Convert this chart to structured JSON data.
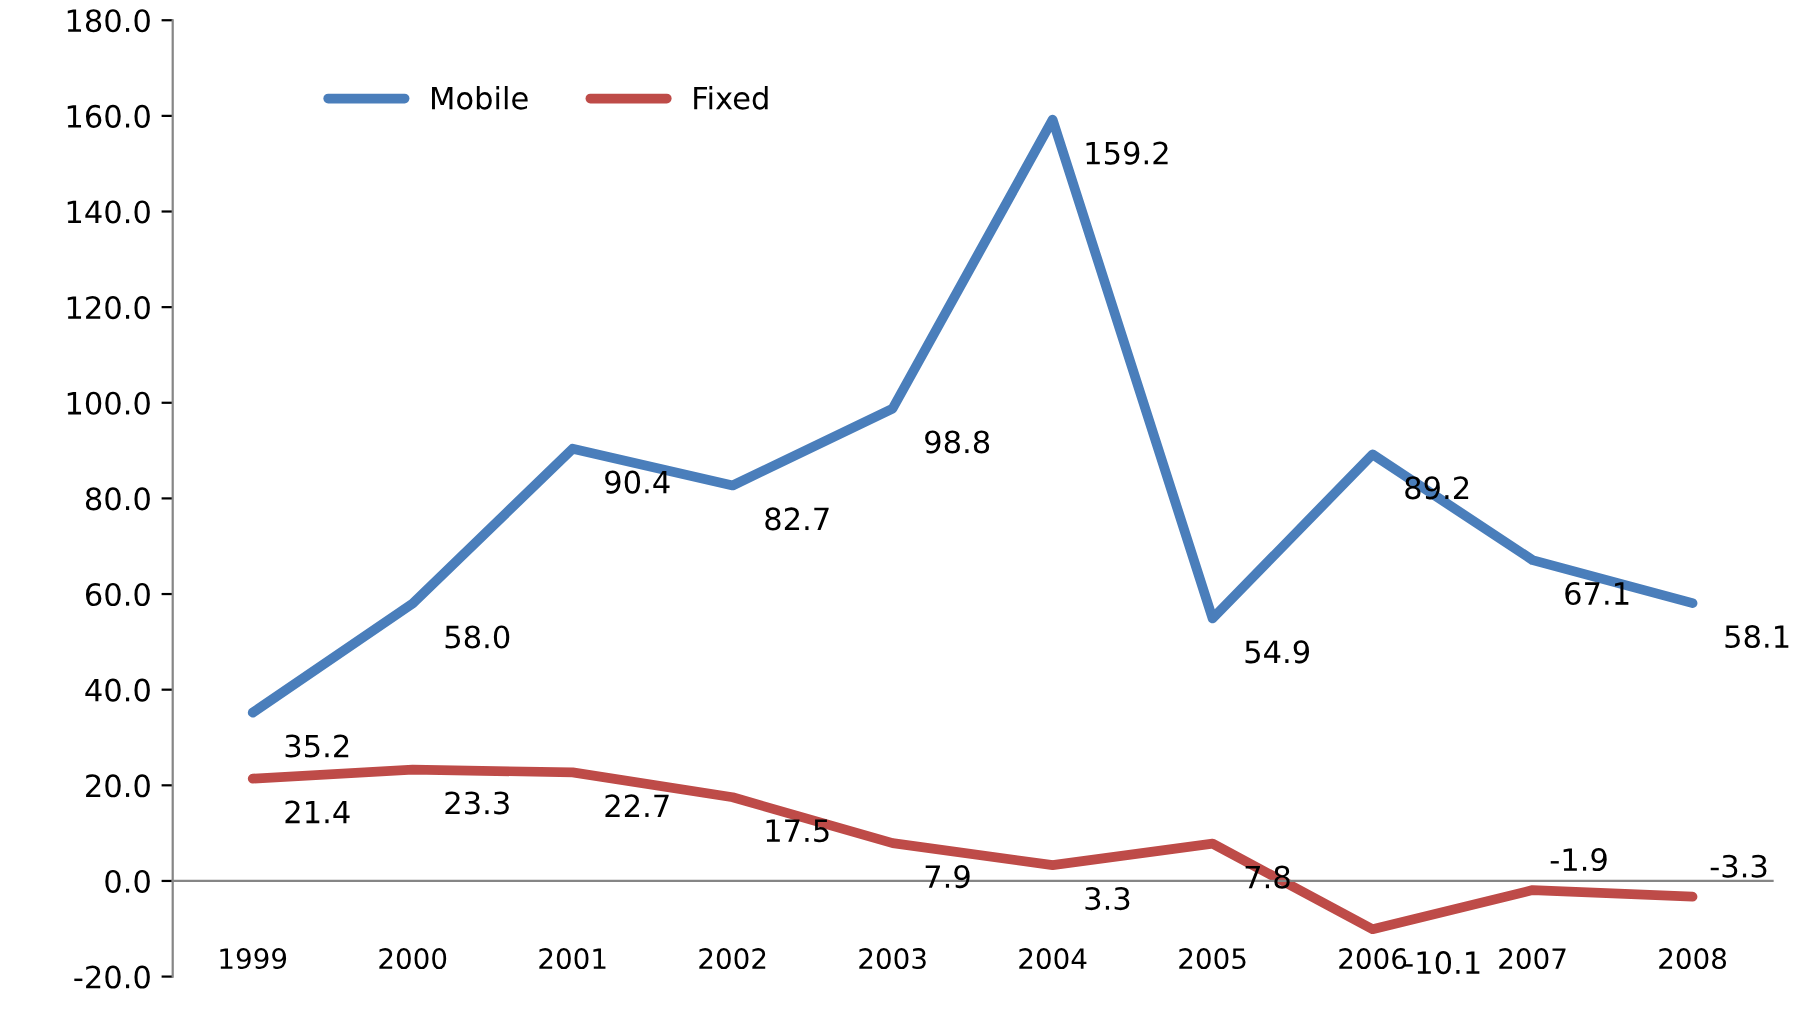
{
  "chart_data": {
    "type": "line",
    "categories": [
      "1999",
      "2000",
      "2001",
      "2002",
      "2003",
      "2004",
      "2005",
      "2006",
      "2007",
      "2008"
    ],
    "series": [
      {
        "name": "Mobile",
        "color": "#4a7ebb",
        "values": [
          35.2,
          58.0,
          90.4,
          82.7,
          98.8,
          159.2,
          54.9,
          89.2,
          67.1,
          58.1
        ],
        "value_labels": [
          "35.2",
          "58.0",
          "90.4",
          "82.7",
          "98.8",
          "159.2",
          "54.9",
          "89.2",
          "67.1",
          "58.1"
        ]
      },
      {
        "name": "Fixed",
        "color": "#be4b48",
        "values": [
          21.4,
          23.3,
          22.7,
          17.5,
          7.9,
          3.3,
          7.8,
          -10.1,
          -1.9,
          -3.3
        ],
        "value_labels": [
          "21.4",
          "23.3",
          "22.7",
          "17.5",
          "7.9",
          "3.3",
          "7.8",
          "-10.1",
          "-1.9",
          "-3.3"
        ]
      }
    ],
    "ylim": [
      -20,
      180
    ],
    "yticks": [
      {
        "value": -20,
        "label": "-20.0"
      },
      {
        "value": 0,
        "label": "0.0"
      },
      {
        "value": 20,
        "label": "20.0"
      },
      {
        "value": 40,
        "label": "40.0"
      },
      {
        "value": 60,
        "label": "60.0"
      },
      {
        "value": 80,
        "label": "80.0"
      },
      {
        "value": 100,
        "label": "100.0"
      },
      {
        "value": 120,
        "label": "120.0"
      },
      {
        "value": 140,
        "label": "140.0"
      },
      {
        "value": 160,
        "label": "160.0"
      },
      {
        "value": 180,
        "label": "180.0"
      }
    ],
    "grid": false,
    "legend": "top left",
    "marker": "none",
    "line_style": "solid"
  }
}
